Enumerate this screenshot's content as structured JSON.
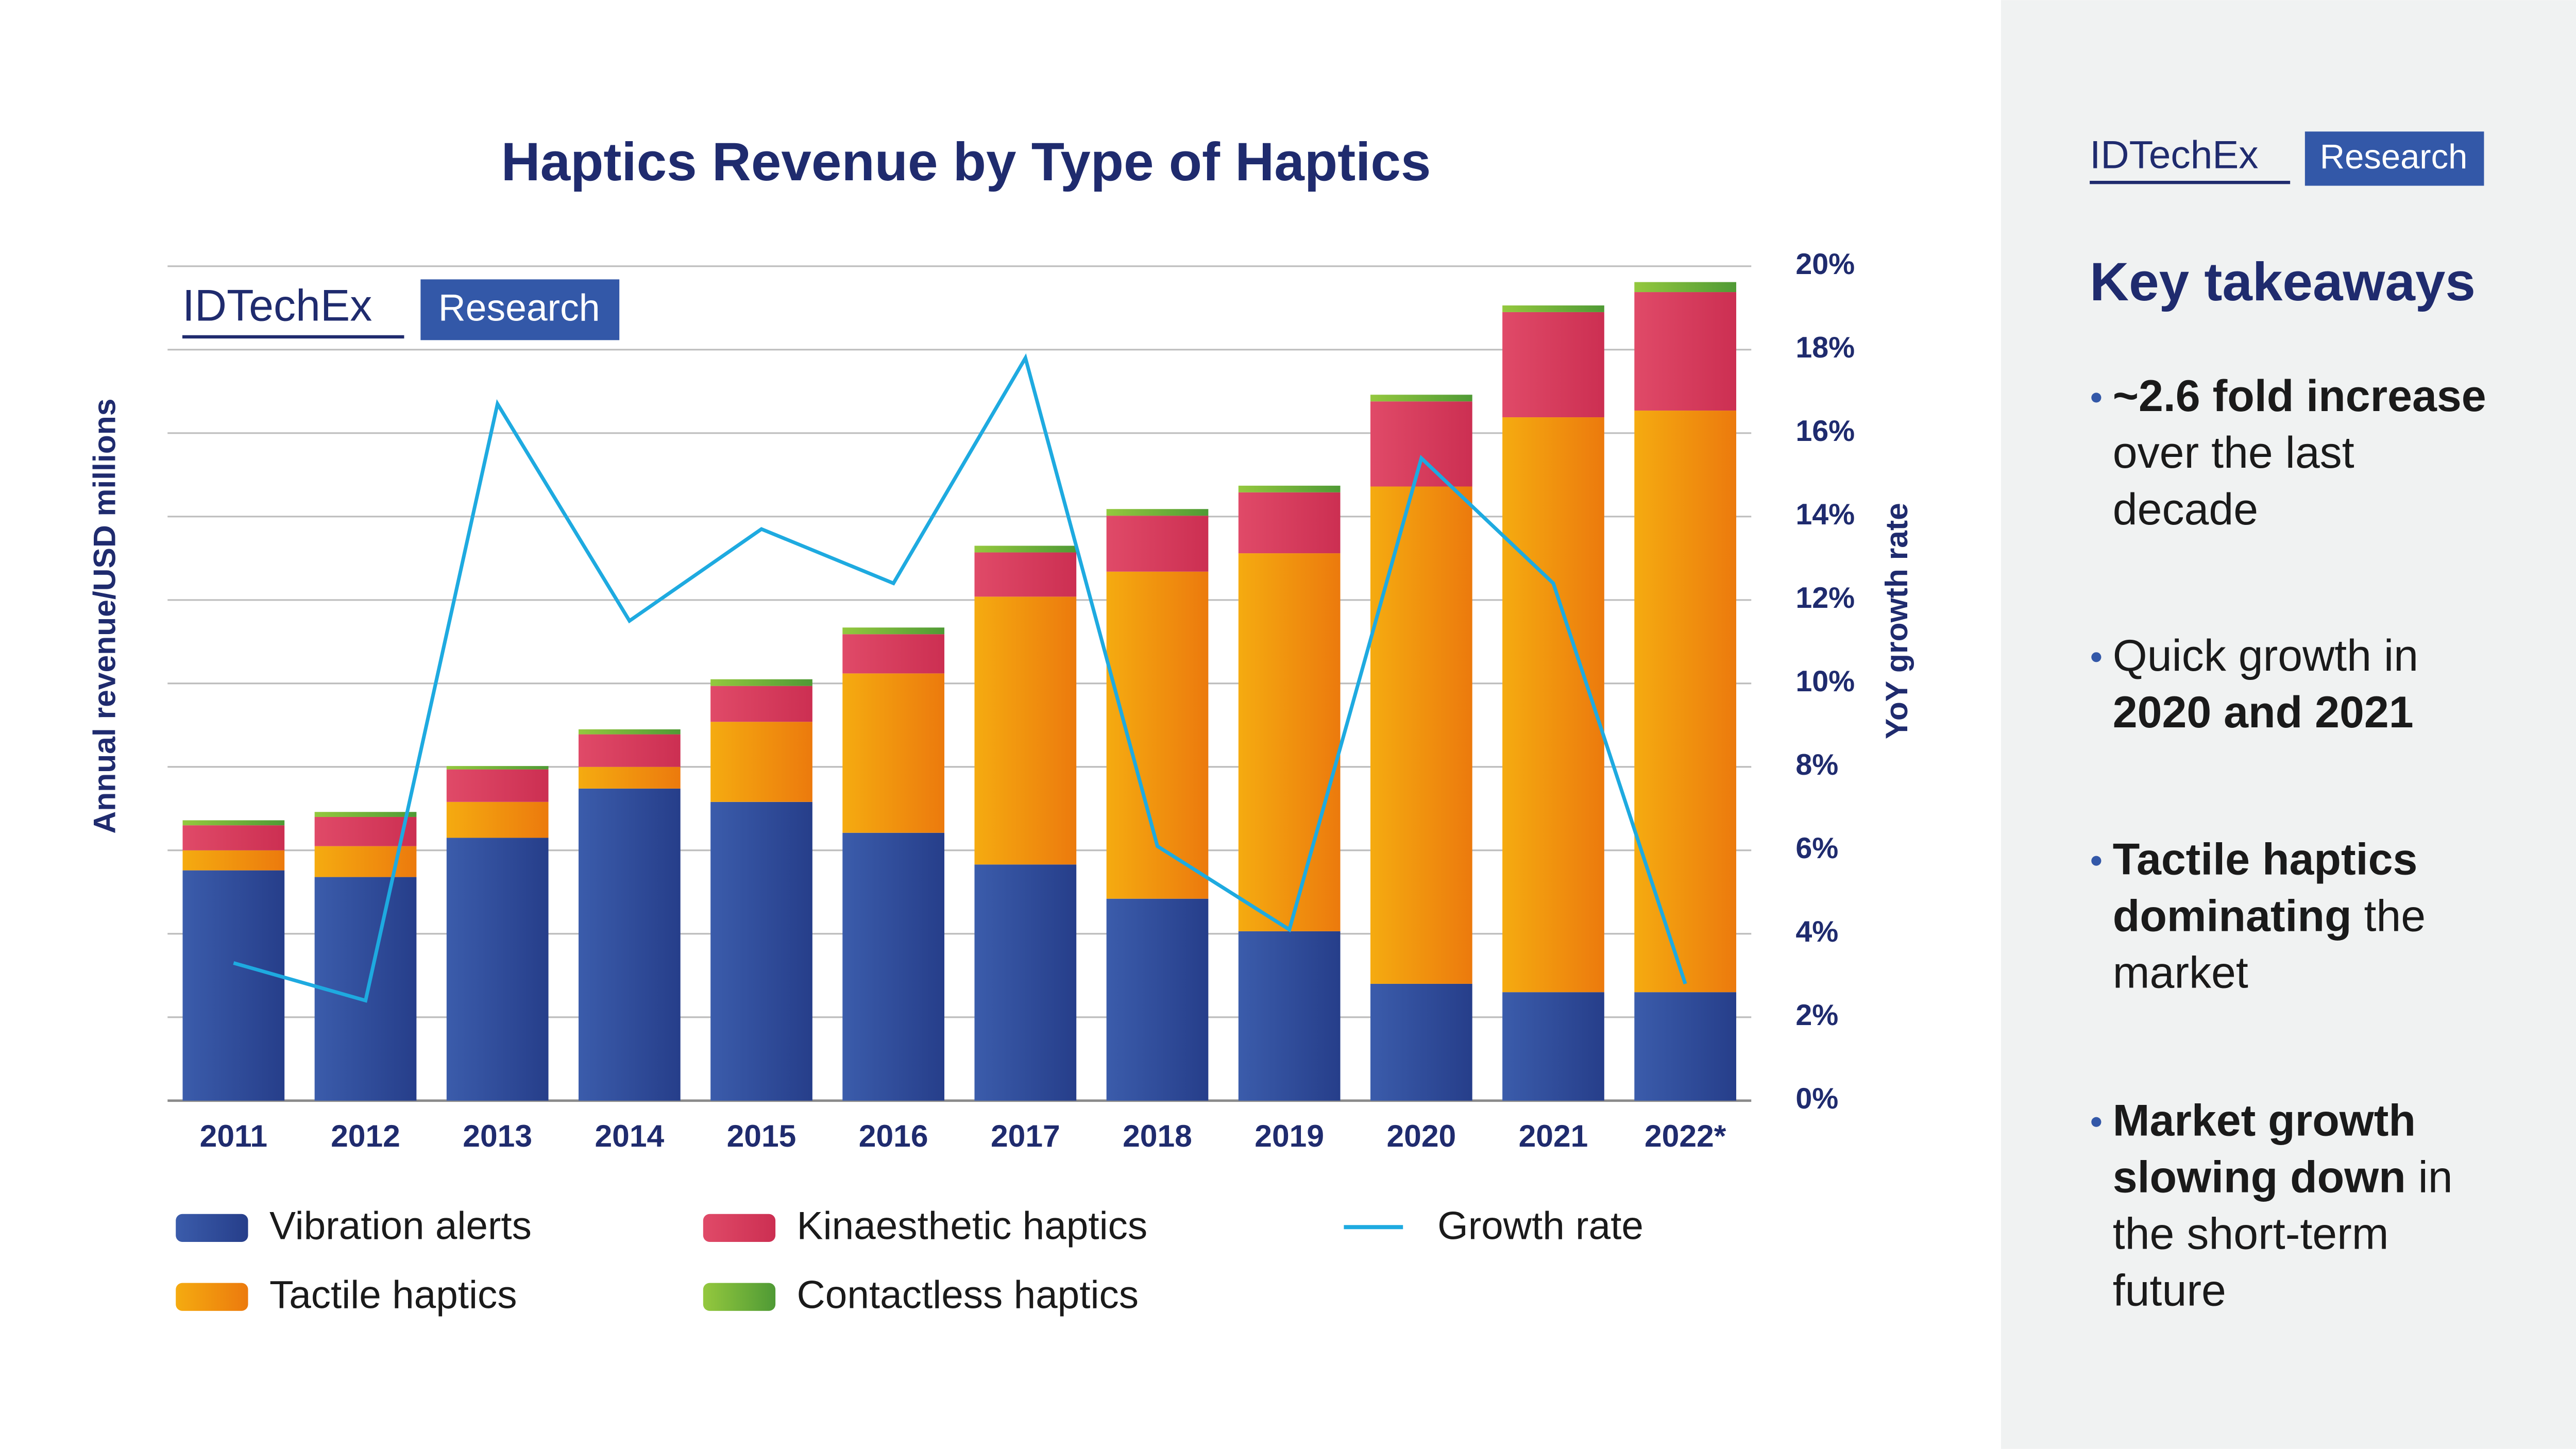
{
  "chart_data": {
    "type": "stacked-bar-line",
    "title": "Haptics Revenue by Type of Haptics",
    "ylabel": "Annual revenue/USD millions",
    "y2label": "YoY growth rate",
    "categories": [
      "2011",
      "2012",
      "2013",
      "2014",
      "2015",
      "2016",
      "2017",
      "2018",
      "2019",
      "2020",
      "2021",
      "2022*"
    ],
    "series": [
      {
        "name": "Vibration alerts",
        "color": "#34519f",
        "values": [
          2.76,
          2.68,
          3.15,
          3.74,
          3.58,
          3.21,
          2.83,
          2.42,
          2.03,
          1.4,
          1.3,
          1.3
        ]
      },
      {
        "name": "Tactile haptics",
        "color": "#f39a0e",
        "values": [
          0.24,
          0.37,
          0.43,
          0.26,
          0.96,
          1.91,
          3.21,
          3.92,
          4.53,
          5.96,
          6.89,
          6.97
        ]
      },
      {
        "name": "Kinaesthetic haptics",
        "color": "#d93f5f",
        "values": [
          0.3,
          0.35,
          0.39,
          0.39,
          0.43,
          0.47,
          0.53,
          0.67,
          0.73,
          1.02,
          1.26,
          1.42
        ]
      },
      {
        "name": "Contactless haptics",
        "color": "#7cb83d",
        "values": [
          0.06,
          0.06,
          0.04,
          0.06,
          0.08,
          0.08,
          0.08,
          0.08,
          0.08,
          0.08,
          0.08,
          0.12
        ]
      },
      {
        "name": "Growth rate",
        "color": "#1eaae0",
        "axis": "y2",
        "values": [
          3.3,
          2.4,
          16.7,
          11.5,
          13.7,
          12.4,
          17.8,
          6.1,
          4.1,
          15.4,
          12.4,
          2.8
        ]
      }
    ],
    "ylim": [
      0,
      10
    ],
    "y2lim": [
      0,
      20
    ],
    "y2ticks": [
      {
        "value": 0,
        "label": "0%"
      },
      {
        "value": 2,
        "label": "2%"
      },
      {
        "value": 4,
        "label": "4%"
      },
      {
        "value": 6,
        "label": "6%"
      },
      {
        "value": 8,
        "label": "8%"
      },
      {
        "value": 10,
        "label": "10%"
      },
      {
        "value": 12,
        "label": "12%"
      },
      {
        "value": 14,
        "label": "14%"
      },
      {
        "value": 16,
        "label": "16%"
      },
      {
        "value": 18,
        "label": "18%"
      },
      {
        "value": 20,
        "label": "20%"
      }
    ],
    "grid": true
  },
  "logo": {
    "name": "IDTechEx",
    "tag": "Research"
  },
  "side_panel": {
    "heading": "Key takeaways",
    "takeaways": [
      [
        [
          {
            "text": "~2.6 fold increase",
            "bold": true
          }
        ],
        [
          {
            "text": "over the last",
            "bold": false
          }
        ],
        [
          {
            "text": "decade",
            "bold": false
          }
        ]
      ],
      [
        [
          {
            "text": "Quick growth in",
            "bold": false
          }
        ],
        [
          {
            "text": "2020 and 2021",
            "bold": true
          }
        ]
      ],
      [
        [
          {
            "text": "Tactile haptics",
            "bold": true
          }
        ],
        [
          {
            "text": "dominating",
            "bold": true
          },
          {
            "text": " the",
            "bold": false
          }
        ],
        [
          {
            "text": "market",
            "bold": false
          }
        ]
      ],
      [
        [
          {
            "text": "Market growth",
            "bold": true
          }
        ],
        [
          {
            "text": "slowing down",
            "bold": true
          },
          {
            "text": " in",
            "bold": false
          }
        ],
        [
          {
            "text": "the short-term",
            "bold": false
          }
        ],
        [
          {
            "text": "future",
            "bold": false
          }
        ]
      ]
    ]
  }
}
